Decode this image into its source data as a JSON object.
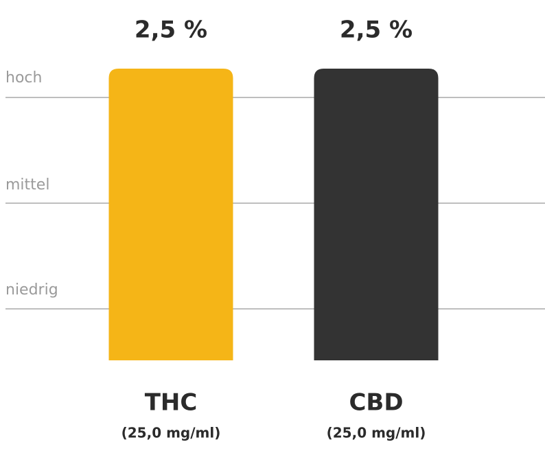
{
  "chart_data": {
    "type": "bar",
    "levels": [
      "hoch",
      "mittel",
      "niedrig"
    ],
    "categories": [
      "THC",
      "CBD"
    ],
    "subcategories": [
      "(25,0 mg/ml)",
      "(25,0 mg/ml)"
    ],
    "values": [
      2.5,
      2.5
    ],
    "value_labels": [
      "2,5 %",
      "2,5 %"
    ],
    "colors": [
      "#f5b517",
      "#333333"
    ],
    "grid": true
  }
}
